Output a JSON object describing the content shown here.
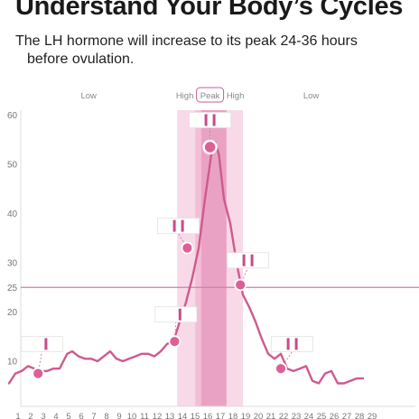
{
  "header": {
    "title": "Understand Your Body’s Cycles",
    "subtitle_line1": "The LH hormone will increase to its peak 24-36 hours",
    "subtitle_line2": "before ovulation."
  },
  "colors": {
    "curve": "#cf5a8e",
    "threshold": "#d57aae",
    "high_band": "#f8d9e8",
    "high_band_inner": "#f3bfd7",
    "peak_band": "#eaa2c4",
    "marker": "#dd5f95",
    "axis_text": "#777777",
    "strip_line": "#c94b88"
  },
  "chart_data": {
    "type": "line",
    "title": "",
    "xlabel": "",
    "ylabel": "",
    "x_ticks": [
      1,
      2,
      3,
      4,
      5,
      6,
      7,
      8,
      9,
      10,
      11,
      12,
      13,
      14,
      15,
      16,
      17,
      18,
      19,
      20,
      21,
      22,
      23,
      24,
      25,
      26,
      27,
      28,
      29
    ],
    "y_ticks": [
      10,
      20,
      25,
      30,
      40,
      50,
      60
    ],
    "xlim": [
      1,
      29
    ],
    "ylim": [
      5,
      61
    ],
    "threshold": 25,
    "zone_labels": [
      {
        "label": "Low",
        "x": 7.3
      },
      {
        "label": "High",
        "x": 14.9
      },
      {
        "label": "Peak",
        "x": 16.9,
        "boxed": true
      },
      {
        "label": "High",
        "x": 18.9
      },
      {
        "label": "Low",
        "x": 24.9
      }
    ],
    "bands": [
      {
        "name": "high",
        "from": 14.3,
        "to": 19.5
      },
      {
        "name": "peak",
        "from": 16.2,
        "to": 18.2
      }
    ],
    "series": [
      {
        "x": [
          1,
          1.5,
          2,
          2.5,
          3,
          3.5,
          4,
          4.5,
          5,
          5.3,
          5.6,
          6,
          6.5,
          7,
          7.5,
          8,
          8.5,
          9,
          9.5,
          10,
          10.5,
          11,
          11.5,
          12,
          12.5,
          13,
          13.5,
          14,
          14.5,
          15,
          15.5,
          16,
          16.5,
          17,
          17.3,
          17.6,
          18,
          18.5,
          19,
          19.5,
          20,
          20.5,
          21,
          21.5,
          22,
          22.5,
          23,
          23.5,
          24,
          24.5,
          25,
          25.5,
          26,
          26.5,
          27,
          27.5,
          28,
          28.5,
          29
        ],
        "y": [
          5.5,
          7.5,
          8,
          9,
          8.5,
          8,
          8,
          8.5,
          8.5,
          10,
          11.5,
          12,
          11,
          10.5,
          10.5,
          10,
          11,
          12,
          10.5,
          10,
          10.5,
          11,
          11.5,
          11.5,
          11,
          12,
          13.5,
          14,
          18,
          22,
          27,
          33,
          43,
          52,
          54.5,
          52,
          43,
          38,
          30,
          23.5,
          21,
          18,
          14.5,
          11.5,
          10.5,
          11.5,
          8.5,
          8,
          8.5,
          9,
          6,
          5.5,
          7.5,
          8,
          5.5,
          5.5,
          6,
          6.5,
          6.5
        ]
      }
    ],
    "markers": [
      {
        "x": 3.3,
        "y": 7.5,
        "strip_day": 3.6,
        "strip_y": 13.5,
        "lines": 1
      },
      {
        "x": 14.1,
        "y": 14,
        "strip_day": 14.2,
        "strip_y": 19.5,
        "lines": 1
      },
      {
        "x": 15.1,
        "y": 33,
        "strip_day": 14.4,
        "strip_y": 37.5,
        "lines": 2
      },
      {
        "x": 16.9,
        "y": 53.5,
        "strip_day": 16.9,
        "strip_y": 59,
        "lines": 2
      },
      {
        "x": 19.3,
        "y": 25.5,
        "strip_day": 19.9,
        "strip_y": 30.5,
        "lines": 2
      },
      {
        "x": 22.5,
        "y": 8.5,
        "strip_day": 23.4,
        "strip_y": 13.5,
        "lines": 2
      }
    ]
  }
}
